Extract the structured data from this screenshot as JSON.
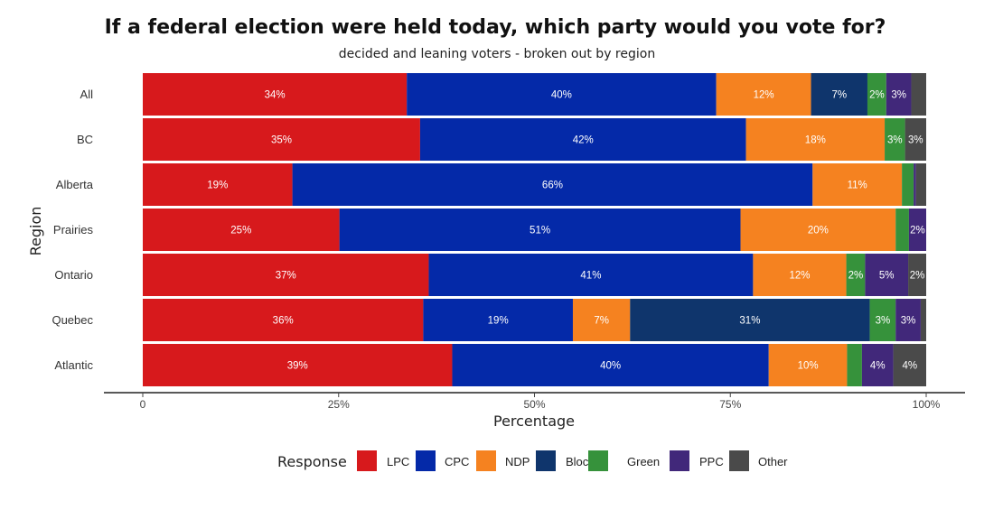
{
  "chart_data": {
    "type": "bar",
    "orientation": "horizontal",
    "stacked": true,
    "title": "If a federal election were held today, which party would you vote for?",
    "subtitle": "decided and leaning voters - broken out by region",
    "xlabel": "Percentage",
    "ylabel": "Region",
    "xlim": [
      0,
      100
    ],
    "x_ticks": [
      {
        "value": 0,
        "label": "0"
      },
      {
        "value": 25,
        "label": "25%"
      },
      {
        "value": 50,
        "label": "50%"
      },
      {
        "value": 75,
        "label": "75%"
      },
      {
        "value": 100,
        "label": "100%"
      }
    ],
    "grid": false,
    "legend_title": "Response",
    "legend_position": "bottom",
    "categories": [
      "All",
      "BC",
      "Alberta",
      "Prairies",
      "Ontario",
      "Quebec",
      "Atlantic"
    ],
    "series": [
      {
        "name": "LPC",
        "color": "#d7191c",
        "values": [
          33.7,
          35.4,
          19.1,
          25.1,
          36.5,
          35.8,
          39.5
        ],
        "labels": [
          "34%",
          "35%",
          "19%",
          "25%",
          "37%",
          "36%",
          "39%"
        ]
      },
      {
        "name": "CPC",
        "color": "#0429a8",
        "values": [
          39.5,
          41.6,
          66.4,
          51.2,
          41.4,
          19.1,
          40.4
        ],
        "labels": [
          "40%",
          "42%",
          "66%",
          "51%",
          "41%",
          "19%",
          "40%"
        ]
      },
      {
        "name": "NDP",
        "color": "#f58220",
        "values": [
          12.1,
          17.7,
          11.4,
          19.8,
          11.9,
          7.3,
          10.0
        ],
        "labels": [
          "12%",
          "18%",
          "11%",
          "20%",
          "12%",
          "7%",
          "10%"
        ]
      },
      {
        "name": "Bloc",
        "color": "#0f356c",
        "values": [
          7.2,
          0,
          0,
          0,
          0,
          30.6,
          0
        ],
        "labels": [
          "7%",
          "",
          "",
          "",
          "",
          "31%",
          ""
        ]
      },
      {
        "name": "Green",
        "color": "#36923b",
        "values": [
          2.4,
          2.6,
          1.5,
          1.7,
          2.4,
          3.3,
          1.9
        ],
        "labels": [
          "2%",
          "3%",
          "",
          "",
          "2%",
          "3%",
          ""
        ]
      },
      {
        "name": "PPC",
        "color": "#41287a",
        "values": [
          3.2,
          0,
          0.3,
          2.2,
          5.5,
          3.2,
          4.0
        ],
        "labels": [
          "3%",
          "",
          "",
          "2%",
          "5%",
          "3%",
          "4%"
        ]
      },
      {
        "name": "Other",
        "color": "#4a4a4a",
        "values": [
          1.9,
          2.7,
          1.3,
          0,
          2.3,
          0.7,
          4.2
        ],
        "labels": [
          "",
          "3%",
          "",
          "",
          "2%",
          "",
          "4%"
        ]
      }
    ]
  }
}
